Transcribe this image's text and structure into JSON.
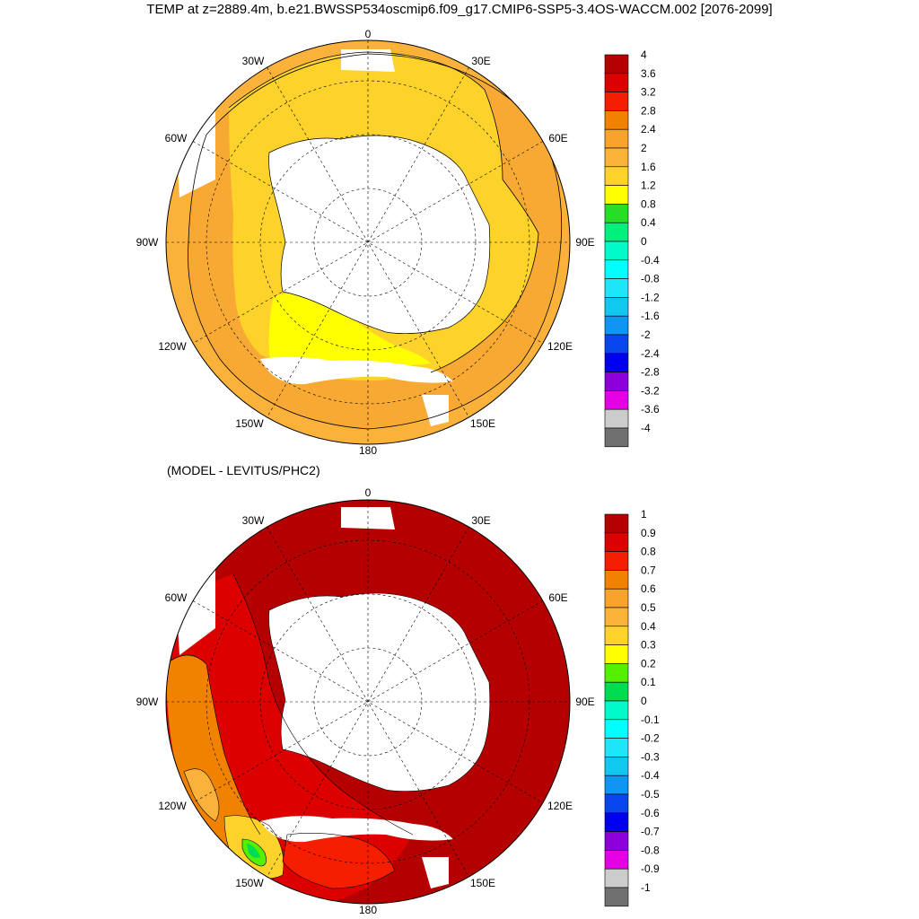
{
  "title": "TEMP at z=2889.4m, b.e21.BWSSP534oscmip6.f09_g17.CMIP6-SSP5-3.4OS-WACCM.002 [2076-2099]",
  "subtitle": "(MODEL - LEVITUS/PHC2)",
  "longitude_labels": [
    "0",
    "30E",
    "60E",
    "90E",
    "120E",
    "150E",
    "180",
    "150W",
    "120W",
    "90W",
    "60W",
    "30W"
  ],
  "panel_top": {
    "colorbar_labels": [
      "4",
      "3.6",
      "3.2",
      "2.8",
      "2.4",
      "2",
      "1.6",
      "1.2",
      "0.8",
      "0.4",
      "0",
      "-0.4",
      "-0.8",
      "-1.2",
      "-1.6",
      "-2",
      "-2.4",
      "-2.8",
      "-3.2",
      "-3.6",
      "-4"
    ],
    "colorbar_colors": [
      "#b40000",
      "#dc0000",
      "#f51e00",
      "#f08200",
      "#f7a32e",
      "#fbb23b",
      "#fcd22b",
      "#ffff00",
      "#28dd28",
      "#00f07e",
      "#00fac8",
      "#00ffff",
      "#1ee6fa",
      "#10c8f0",
      "#0f96f0",
      "#0a46f0",
      "#0000f0",
      "#8c00dc",
      "#e600e6",
      "#cccccc",
      "#707070"
    ]
  },
  "panel_bottom": {
    "colorbar_labels": [
      "1",
      "0.9",
      "0.8",
      "0.7",
      "0.6",
      "0.5",
      "0.4",
      "0.3",
      "0.2",
      "0.1",
      "0",
      "-0.1",
      "-0.2",
      "-0.3",
      "-0.4",
      "-0.5",
      "-0.6",
      "-0.7",
      "-0.8",
      "-0.9",
      "-1"
    ],
    "colorbar_colors": [
      "#b40000",
      "#dc0000",
      "#f51e00",
      "#f08200",
      "#f7a32e",
      "#fbb23b",
      "#fcd22b",
      "#ffff00",
      "#55f000",
      "#00dc50",
      "#00fac8",
      "#00ffff",
      "#1ee6fa",
      "#10c8f0",
      "#0f96f0",
      "#0a46f0",
      "#0000f0",
      "#8c00dc",
      "#e600e6",
      "#cccccc",
      "#707070"
    ]
  }
}
